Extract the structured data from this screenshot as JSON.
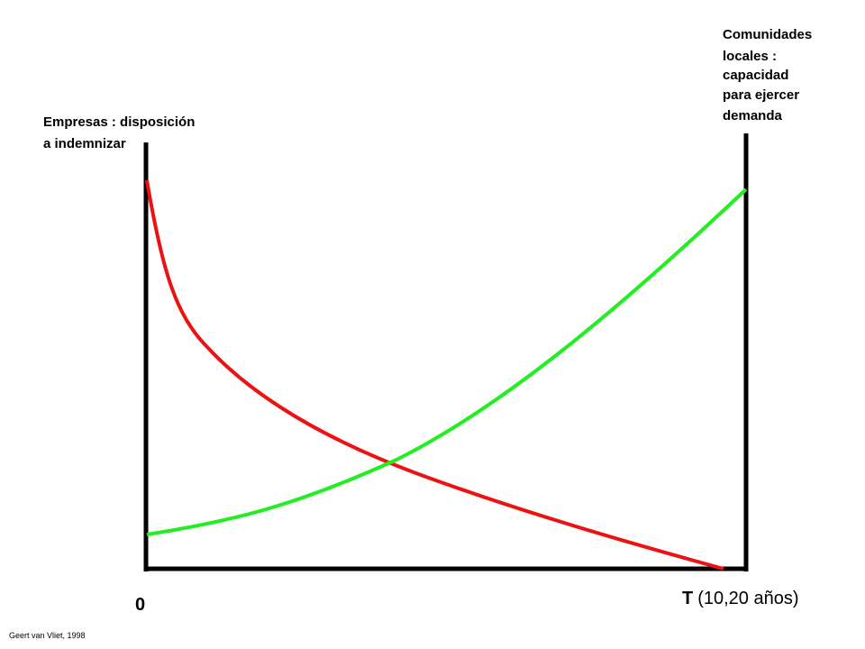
{
  "left_label": [
    "Empresas : disposición",
    "a indemnizar"
  ],
  "right_label": [
    "Comunidades",
    "locales :",
    "capacidad",
    "para ejercer",
    "demanda"
  ],
  "origin_label": "0",
  "x_label": {
    "symbol": "T",
    "text": "(10,20 años)"
  },
  "credit": "Geert van Vliet, 1998"
}
